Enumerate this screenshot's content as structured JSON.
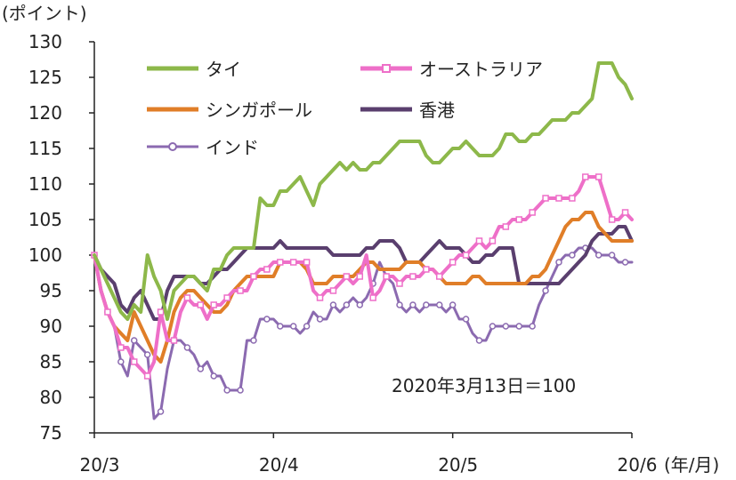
{
  "chart_data": {
    "type": "line",
    "unit_label": "(ポイント)",
    "xunit_label": "(年/月)",
    "annotation": "2020年3月13日＝100",
    "ylim": [
      75,
      130
    ],
    "yticks": [
      75,
      80,
      85,
      90,
      95,
      100,
      105,
      110,
      115,
      120,
      125,
      130
    ],
    "xlim": [
      0,
      81
    ],
    "xticks": [
      {
        "pos": 0,
        "label": "20/3"
      },
      {
        "pos": 27,
        "label": "20/4"
      },
      {
        "pos": 54,
        "label": "20/5"
      },
      {
        "pos": 81,
        "label": "20/6"
      }
    ],
    "series": [
      {
        "name": "タイ",
        "color": "#8DB84A",
        "marker": false,
        "values": [
          100,
          98,
          96,
          94,
          92,
          91,
          93,
          92,
          100,
          97,
          95,
          91,
          95,
          96,
          97,
          97,
          96,
          95,
          98,
          98,
          100,
          101,
          101,
          101,
          101,
          108,
          107,
          107,
          109,
          109,
          110,
          111,
          109,
          107,
          110,
          111,
          112,
          113,
          112,
          113,
          112,
          112,
          113,
          113,
          114,
          115,
          116,
          116,
          116,
          116,
          114,
          113,
          113,
          114,
          115,
          115,
          116,
          115,
          114,
          114,
          114,
          115,
          117,
          117,
          116,
          116,
          117,
          117,
          118,
          119,
          119,
          119,
          120,
          120,
          121,
          122,
          127,
          127,
          127,
          125,
          124,
          122
        ]
      },
      {
        "name": "オーストラリア",
        "color": "#EE6FC8",
        "marker": "square",
        "values": [
          100,
          95,
          92,
          90,
          87,
          87,
          85,
          84,
          83,
          85,
          92,
          88,
          88,
          92,
          94,
          93,
          93,
          91,
          93,
          93,
          94,
          95,
          95,
          95,
          97,
          98,
          98,
          99,
          99,
          99,
          99,
          99,
          99,
          95,
          94,
          95,
          95,
          96,
          97,
          96,
          97,
          100,
          94,
          95,
          97,
          97,
          96,
          97,
          97,
          97,
          98,
          98,
          97,
          98,
          99,
          100,
          100,
          101,
          102,
          101,
          102,
          104,
          104,
          105,
          105,
          105,
          106,
          107,
          108,
          108,
          108,
          108,
          108,
          109,
          111,
          111,
          111,
          108,
          105,
          105,
          106,
          105
        ]
      },
      {
        "name": "シンガポール",
        "color": "#E07E28",
        "marker": false,
        "values": [
          100,
          95,
          92,
          90,
          89,
          88,
          92,
          90,
          88,
          86,
          85,
          88,
          92,
          94,
          95,
          95,
          94,
          93,
          92,
          92,
          93,
          95,
          96,
          97,
          97,
          97,
          97,
          97,
          99,
          99,
          99,
          99,
          98,
          96,
          96,
          96,
          97,
          97,
          97,
          97,
          98,
          99,
          99,
          98,
          98,
          98,
          98,
          99,
          99,
          99,
          98,
          98,
          97,
          96,
          96,
          96,
          96,
          97,
          97,
          96,
          96,
          96,
          96,
          96,
          96,
          96,
          97,
          97,
          98,
          100,
          102,
          104,
          105,
          105,
          106,
          106,
          104,
          103,
          102,
          102,
          102,
          102
        ]
      },
      {
        "name": "香港",
        "color": "#5A3F6E",
        "marker": false,
        "values": [
          100,
          98,
          97,
          96,
          93,
          92,
          94,
          95,
          93,
          91,
          91,
          95,
          97,
          97,
          97,
          97,
          96,
          96,
          97,
          98,
          98,
          99,
          100,
          101,
          101,
          101,
          101,
          101,
          102,
          101,
          101,
          101,
          101,
          101,
          101,
          101,
          100,
          100,
          100,
          100,
          100,
          101,
          101,
          102,
          102,
          102,
          101,
          99,
          99,
          99,
          100,
          101,
          102,
          101,
          101,
          101,
          100,
          99,
          99,
          100,
          100,
          101,
          101,
          101,
          96,
          96,
          96,
          96,
          96,
          96,
          96,
          97,
          98,
          99,
          100,
          102,
          103,
          103,
          103,
          104,
          104,
          102
        ]
      },
      {
        "name": "インド",
        "color": "#8B6AB0",
        "marker": "circle",
        "values": [
          100,
          95,
          92,
          90,
          85,
          83,
          88,
          87,
          86,
          77,
          78,
          84,
          88,
          88,
          87,
          86,
          84,
          85,
          83,
          83,
          81,
          81,
          81,
          88,
          88,
          91,
          91,
          91,
          90,
          90,
          90,
          89,
          90,
          92,
          91,
          91,
          93,
          92,
          93,
          94,
          93,
          94,
          96,
          99,
          97,
          96,
          93,
          92,
          93,
          92,
          93,
          93,
          93,
          92,
          93,
          91,
          91,
          89,
          88,
          88,
          90,
          90,
          90,
          90,
          90,
          90,
          90,
          93,
          95,
          97,
          99,
          100,
          100,
          101,
          101,
          101,
          100,
          100,
          100,
          99,
          99,
          99
        ]
      }
    ]
  }
}
